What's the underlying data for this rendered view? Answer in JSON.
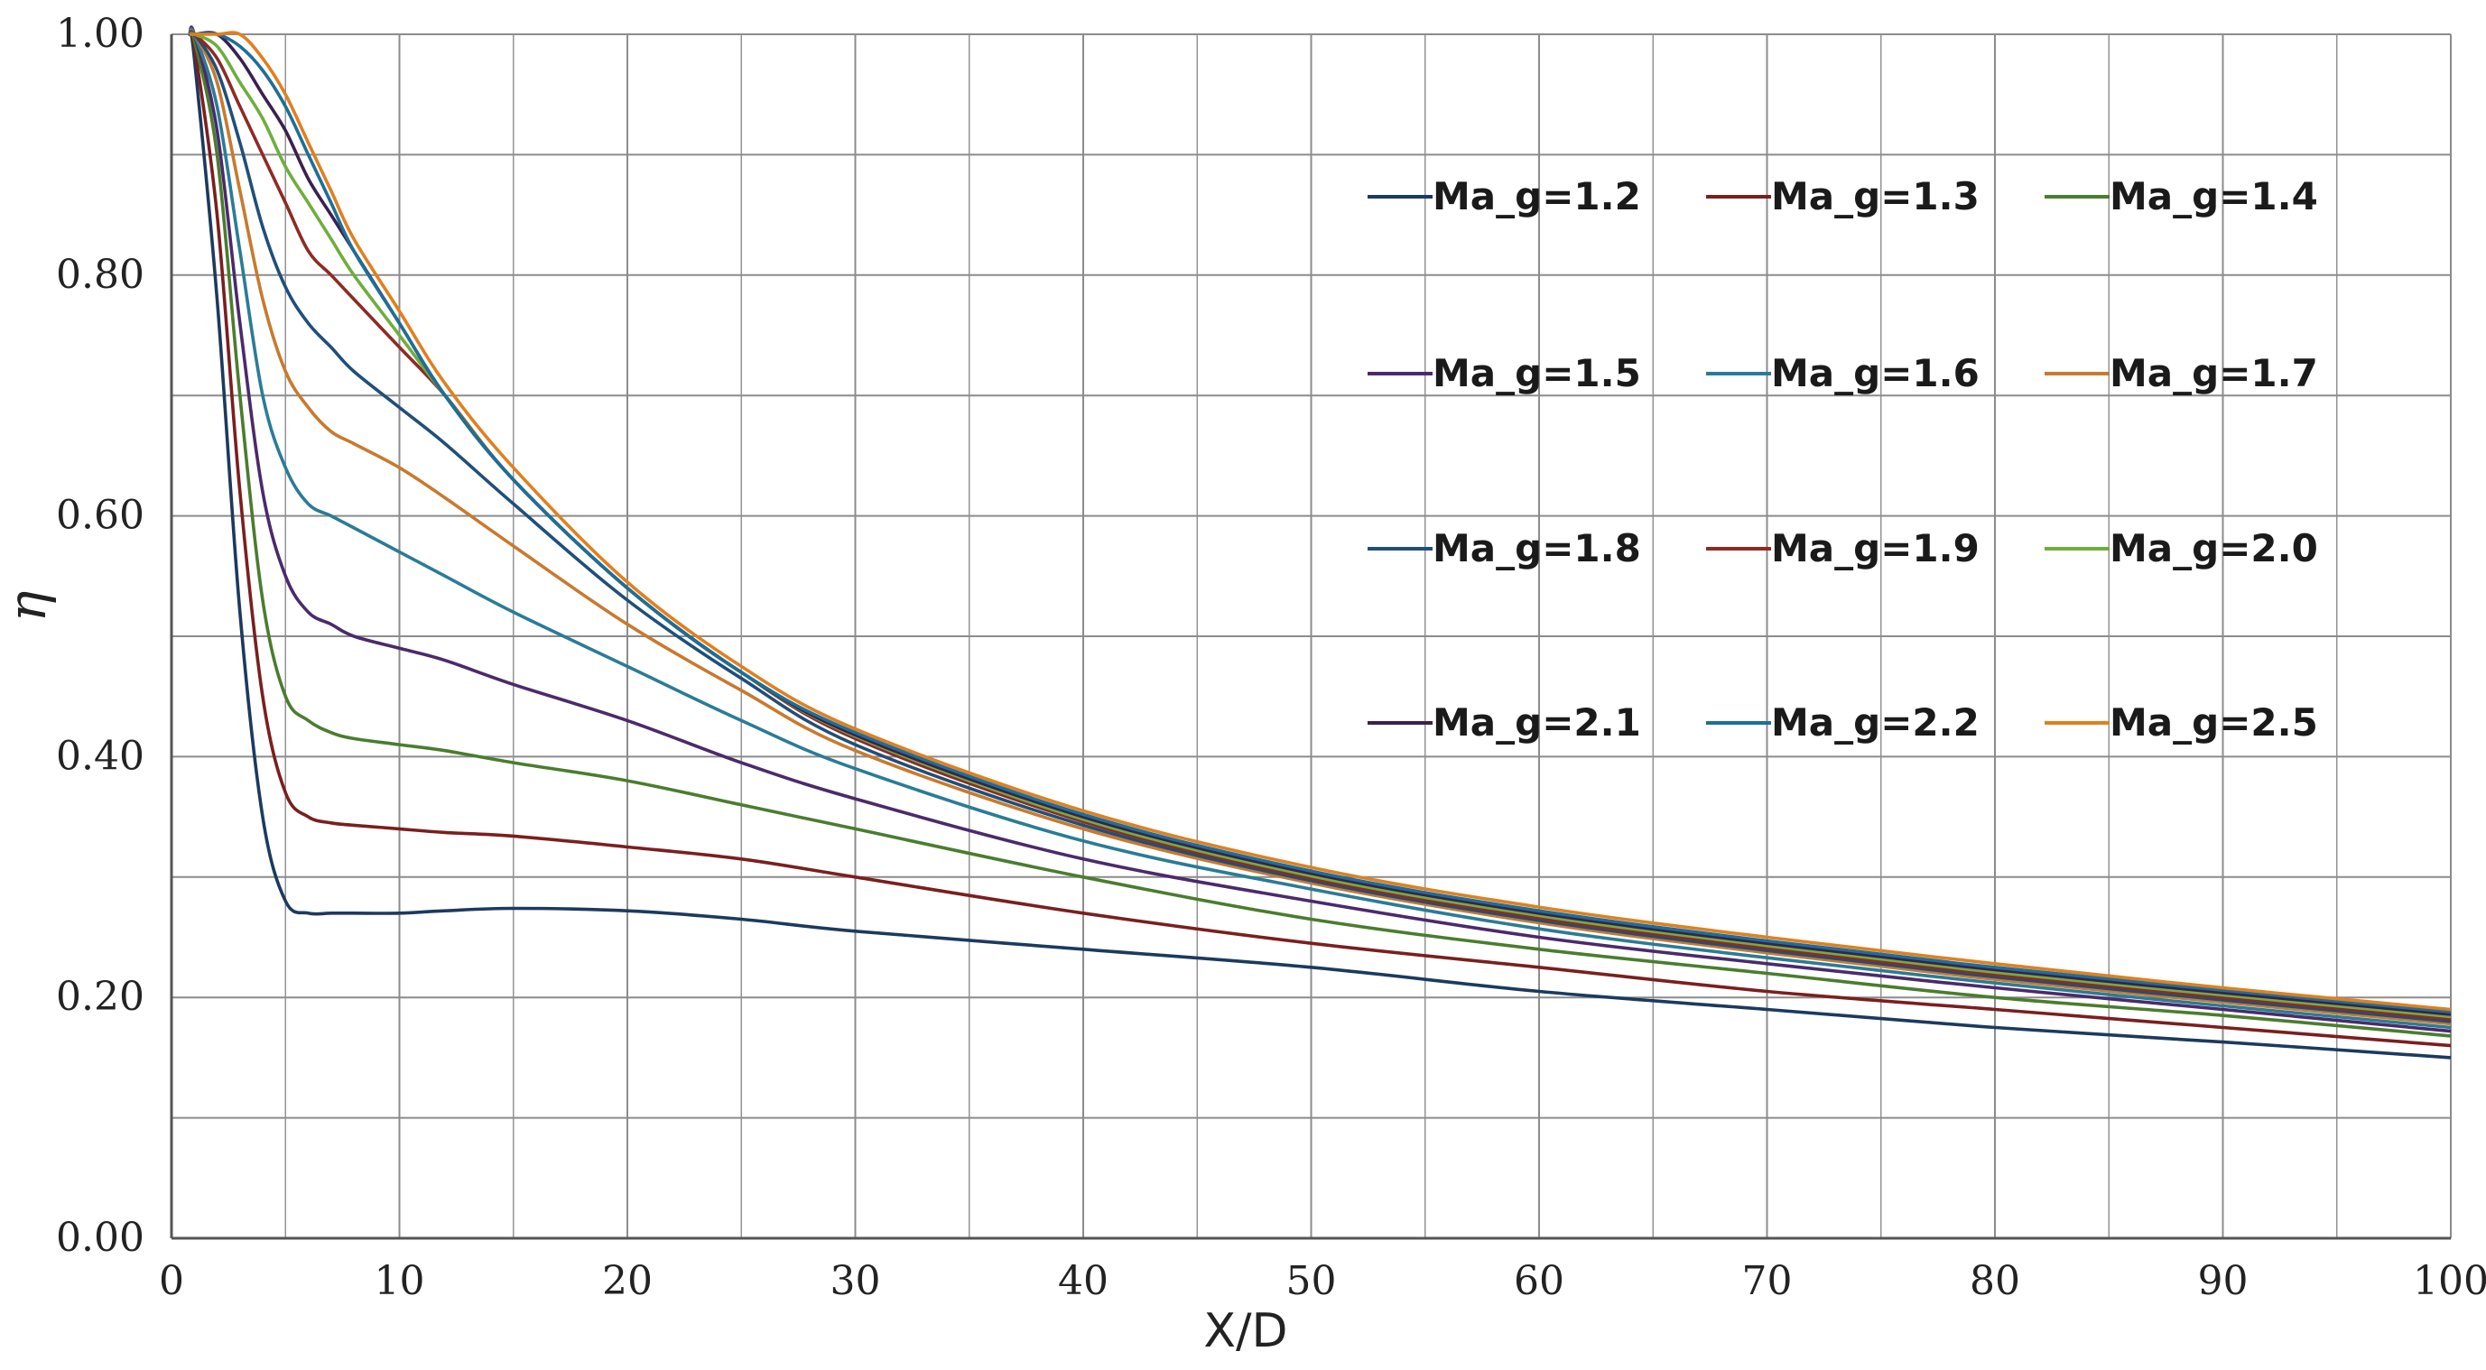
{
  "chart_data": {
    "type": "line",
    "title": "",
    "xlabel": "X/D",
    "ylabel": "η",
    "xlim": [
      0,
      100
    ],
    "ylim": [
      0,
      1.0
    ],
    "x_ticks": [
      "0",
      "10",
      "20",
      "30",
      "40",
      "50",
      "60",
      "70",
      "80",
      "90",
      "100"
    ],
    "y_ticks": [
      "0.00",
      "0.20",
      "0.40",
      "0.60",
      "0.80",
      "1.00"
    ],
    "grid": true,
    "legend_position": "top-right",
    "x": [
      0.8,
      1,
      2,
      3,
      4,
      5,
      6,
      7,
      8,
      10,
      12,
      15,
      20,
      25,
      30,
      40,
      50,
      60,
      70,
      80,
      90,
      100
    ],
    "series": [
      {
        "name": "Ma_g=1.2",
        "color": "#1c3a5e",
        "values": [
          1.0,
          0.98,
          0.78,
          0.52,
          0.35,
          0.28,
          0.27,
          0.27,
          0.27,
          0.27,
          0.272,
          0.274,
          0.272,
          0.265,
          0.255,
          0.24,
          0.225,
          0.205,
          0.19,
          0.175,
          0.163,
          0.15
        ]
      },
      {
        "name": "Ma_g=1.3",
        "color": "#7a1f1f",
        "values": [
          1.0,
          0.99,
          0.85,
          0.62,
          0.45,
          0.37,
          0.35,
          0.345,
          0.343,
          0.34,
          0.337,
          0.334,
          0.325,
          0.315,
          0.3,
          0.27,
          0.245,
          0.225,
          0.205,
          0.19,
          0.175,
          0.16
        ]
      },
      {
        "name": "Ma_g=1.4",
        "color": "#4a7d2e",
        "values": [
          1.0,
          0.995,
          0.9,
          0.7,
          0.53,
          0.45,
          0.43,
          0.42,
          0.415,
          0.41,
          0.405,
          0.395,
          0.38,
          0.36,
          0.34,
          0.3,
          0.265,
          0.24,
          0.22,
          0.2,
          0.185,
          0.168
        ]
      },
      {
        "name": "Ma_g=1.5",
        "color": "#4b2a6b",
        "values": [
          1.0,
          1.0,
          0.92,
          0.76,
          0.62,
          0.55,
          0.52,
          0.51,
          0.5,
          0.49,
          0.48,
          0.46,
          0.43,
          0.395,
          0.365,
          0.315,
          0.28,
          0.25,
          0.228,
          0.208,
          0.19,
          0.172
        ]
      },
      {
        "name": "Ma_g=1.6",
        "color": "#2a7c96",
        "values": [
          1.0,
          1.0,
          0.94,
          0.82,
          0.7,
          0.64,
          0.61,
          0.6,
          0.59,
          0.57,
          0.55,
          0.52,
          0.475,
          0.43,
          0.39,
          0.33,
          0.29,
          0.257,
          0.233,
          0.212,
          0.193,
          0.175
        ]
      },
      {
        "name": "Ma_g=1.7",
        "color": "#c87a2e",
        "values": [
          1.0,
          1.0,
          0.96,
          0.87,
          0.78,
          0.72,
          0.69,
          0.67,
          0.66,
          0.64,
          0.615,
          0.575,
          0.51,
          0.455,
          0.405,
          0.34,
          0.295,
          0.262,
          0.237,
          0.215,
          0.196,
          0.178
        ]
      },
      {
        "name": "Ma_g=1.8",
        "color": "#1f4f7a",
        "values": [
          1.0,
          1.0,
          0.97,
          0.91,
          0.84,
          0.79,
          0.76,
          0.74,
          0.72,
          0.69,
          0.66,
          0.61,
          0.53,
          0.465,
          0.41,
          0.343,
          0.297,
          0.264,
          0.239,
          0.217,
          0.198,
          0.18
        ]
      },
      {
        "name": "Ma_g=1.9",
        "color": "#8e2a24",
        "values": [
          1.0,
          1.0,
          0.98,
          0.94,
          0.9,
          0.86,
          0.82,
          0.8,
          0.78,
          0.74,
          0.7,
          0.63,
          0.54,
          0.47,
          0.415,
          0.346,
          0.299,
          0.266,
          0.241,
          0.219,
          0.2,
          0.182
        ]
      },
      {
        "name": "Ma_g=2.0",
        "color": "#6fae3e",
        "values": [
          1.0,
          1.0,
          0.99,
          0.96,
          0.93,
          0.89,
          0.86,
          0.83,
          0.8,
          0.75,
          0.7,
          0.63,
          0.54,
          0.47,
          0.417,
          0.348,
          0.301,
          0.268,
          0.243,
          0.221,
          0.202,
          0.184
        ]
      },
      {
        "name": "Ma_g=2.1",
        "color": "#3a2050",
        "values": [
          1.0,
          1.0,
          1.0,
          0.98,
          0.95,
          0.92,
          0.88,
          0.85,
          0.82,
          0.76,
          0.7,
          0.63,
          0.54,
          0.47,
          0.418,
          0.35,
          0.303,
          0.27,
          0.245,
          0.223,
          0.204,
          0.186
        ]
      },
      {
        "name": "Ma_g=2.2",
        "color": "#1d6f98",
        "values": [
          1.0,
          1.0,
          1.0,
          0.99,
          0.97,
          0.94,
          0.9,
          0.86,
          0.82,
          0.76,
          0.7,
          0.63,
          0.54,
          0.47,
          0.42,
          0.352,
          0.305,
          0.272,
          0.247,
          0.225,
          0.206,
          0.188
        ]
      },
      {
        "name": "Ma_g=2.5",
        "color": "#e0801f",
        "values": [
          1.0,
          1.0,
          1.0,
          1.0,
          0.98,
          0.95,
          0.91,
          0.87,
          0.83,
          0.77,
          0.71,
          0.64,
          0.545,
          0.475,
          0.423,
          0.355,
          0.308,
          0.275,
          0.25,
          0.228,
          0.208,
          0.19
        ]
      }
    ]
  }
}
